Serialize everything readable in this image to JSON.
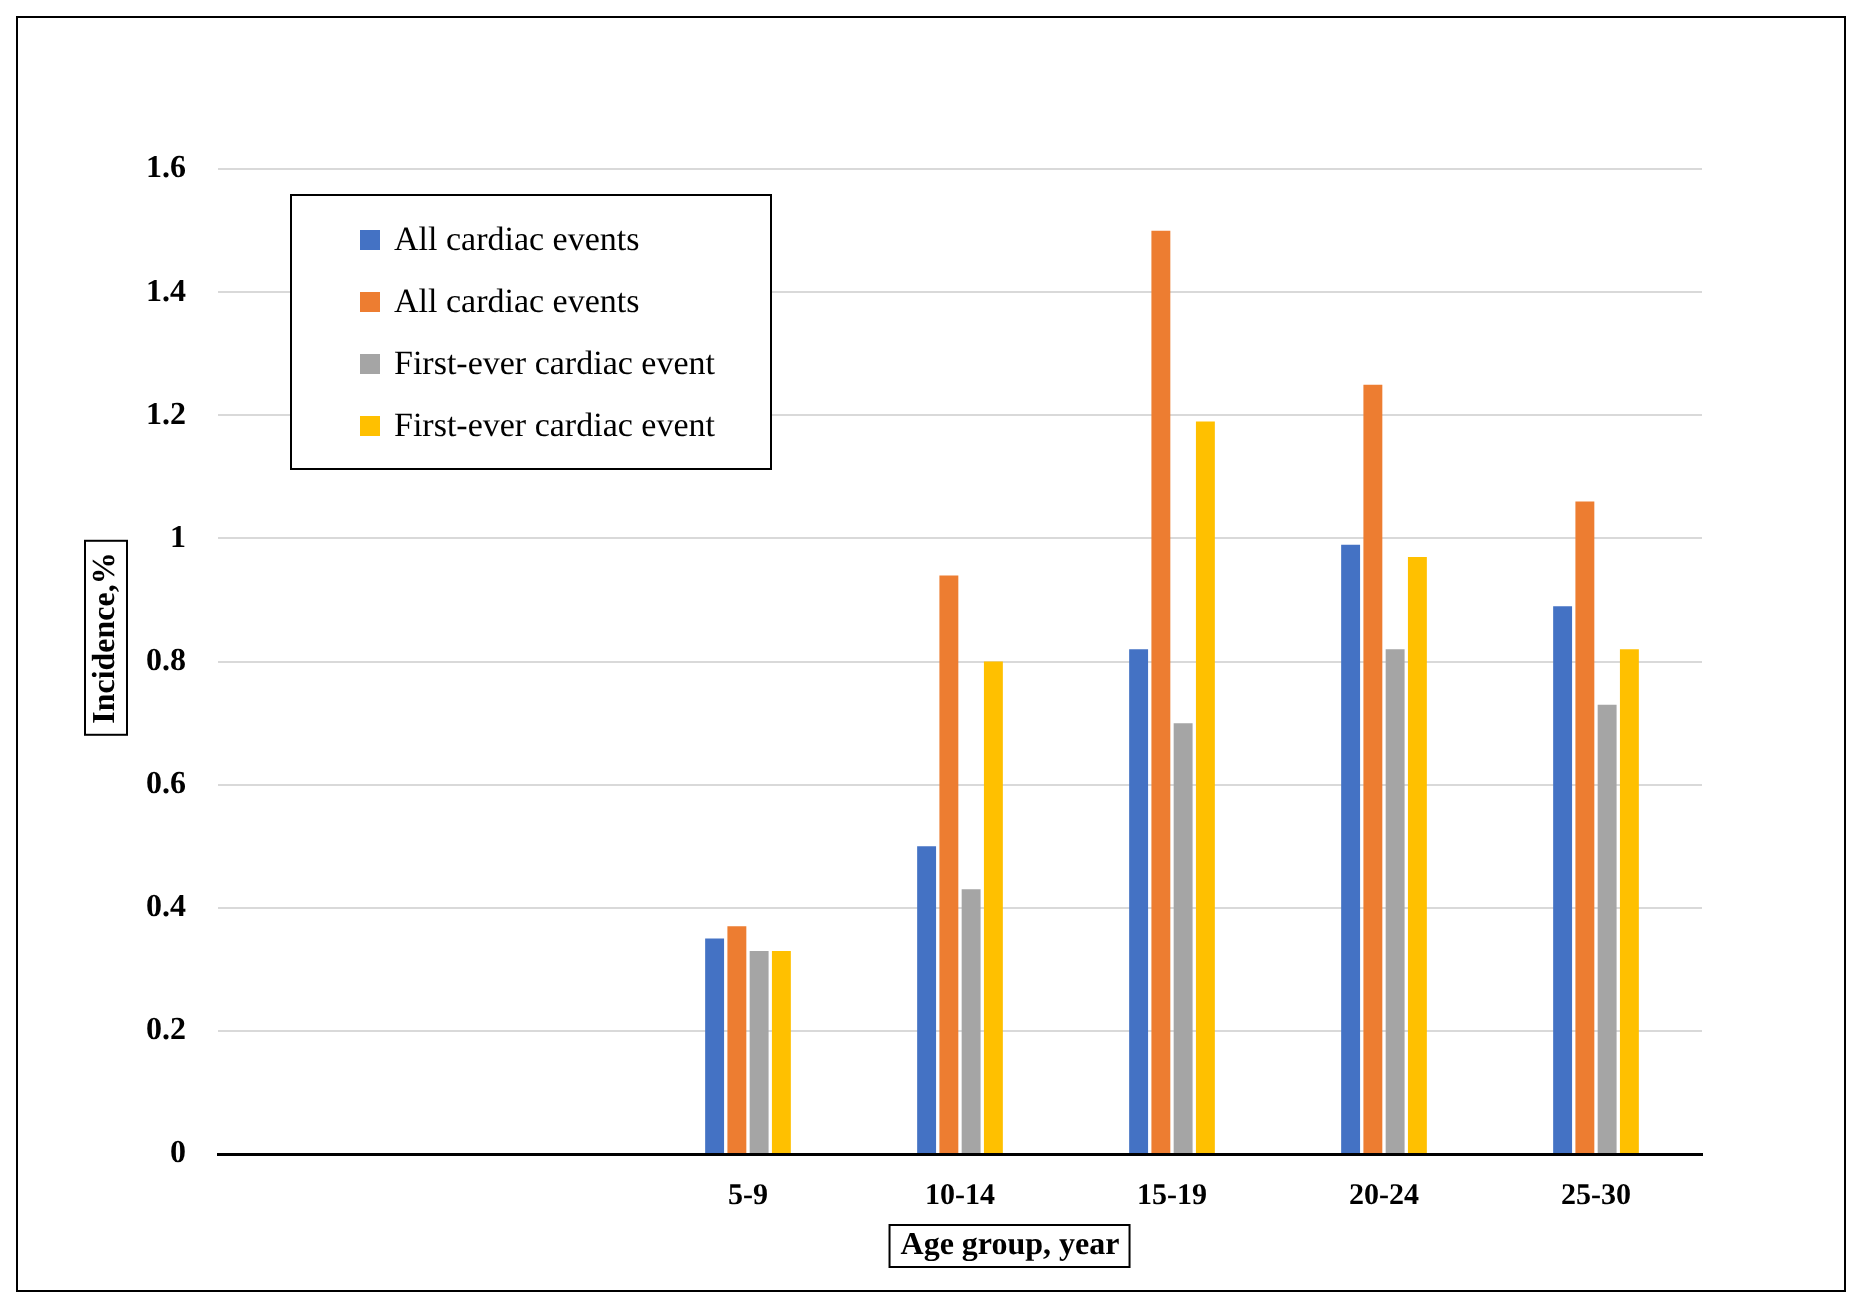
{
  "chart_data": {
    "type": "bar",
    "xlabel": "Age group, year",
    "ylabel": "Incidence,%",
    "categories": [
      null,
      null,
      "5-9",
      "10-14",
      "15-19",
      "20-24",
      "25-30"
    ],
    "series": [
      {
        "name": "All cardiac events",
        "color": "#4472c4",
        "values": [
          null,
          null,
          0.35,
          0.5,
          0.82,
          0.99,
          0.89
        ]
      },
      {
        "name": "All cardiac events",
        "color": "#ed7d31",
        "values": [
          null,
          null,
          0.37,
          0.94,
          1.5,
          1.25,
          1.06
        ]
      },
      {
        "name": "First-ever cardiac event",
        "color": "#a5a5a5",
        "values": [
          null,
          null,
          0.33,
          0.43,
          0.7,
          0.82,
          0.73
        ]
      },
      {
        "name": "First-ever cardiac event",
        "color": "#ffc000",
        "values": [
          null,
          null,
          0.33,
          0.8,
          1.19,
          0.97,
          0.82
        ]
      }
    ],
    "ylim": [
      0,
      1.6
    ],
    "yticks": [
      0,
      0.2,
      0.4,
      0.6,
      0.8,
      1,
      1.2,
      1.4,
      1.6
    ],
    "grid": "y",
    "legend": "top left"
  }
}
